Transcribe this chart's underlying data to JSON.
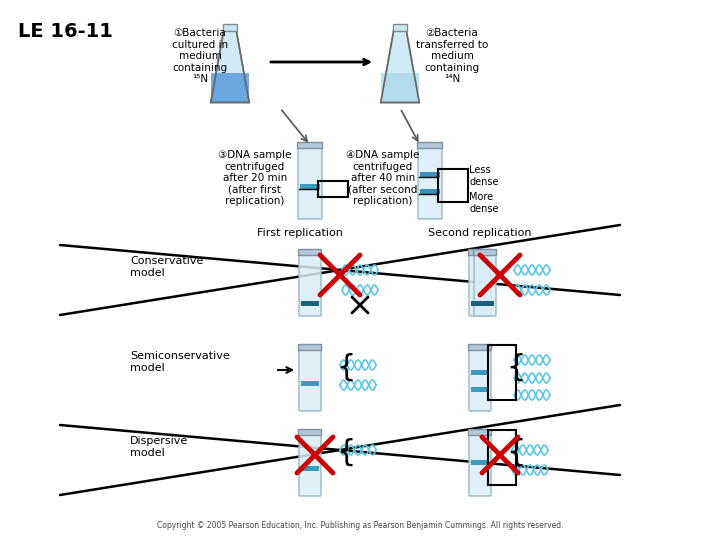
{
  "title": "LE 16-11",
  "bg_color": "#ffffff",
  "step1_label": "①Bacteria\ncultured in\nmedium\ncontaining\n¹⁵N",
  "step2_label": "②Bacteria\ntransferred to\nmedium\ncontaining\n¹⁴N",
  "step3_label": "③DNA sample\ncentrifuged\nafter 20 min\n(after first\nreplication)",
  "step4_label": "④DNA sample\ncentrifuged\nafter 40 min\n(after second\nreplication)",
  "less_dense": "Less\ndense",
  "more_dense": "More\ndense",
  "first_rep_label": "First replication",
  "second_rep_label": "Second replication",
  "conservative_label": "Conservative\nmodel",
  "semiconservative_label": "Semiconservative\nmodel",
  "dispersive_label": "Dispersive\nmodel",
  "flask1_liquid_color": "#4a90d9",
  "flask2_liquid_color": "#a8d8ea",
  "dna_dark_color": "#1a6080",
  "dna_light_color": "#5bc8e8",
  "dna_hybrid_color": "#3a9abf",
  "red_x_color": "#cc0000",
  "copyright": "Copyright © 2005 Pearson Education, Inc. Publishing as Pearson Benjamin Cummings. All rights reserved."
}
